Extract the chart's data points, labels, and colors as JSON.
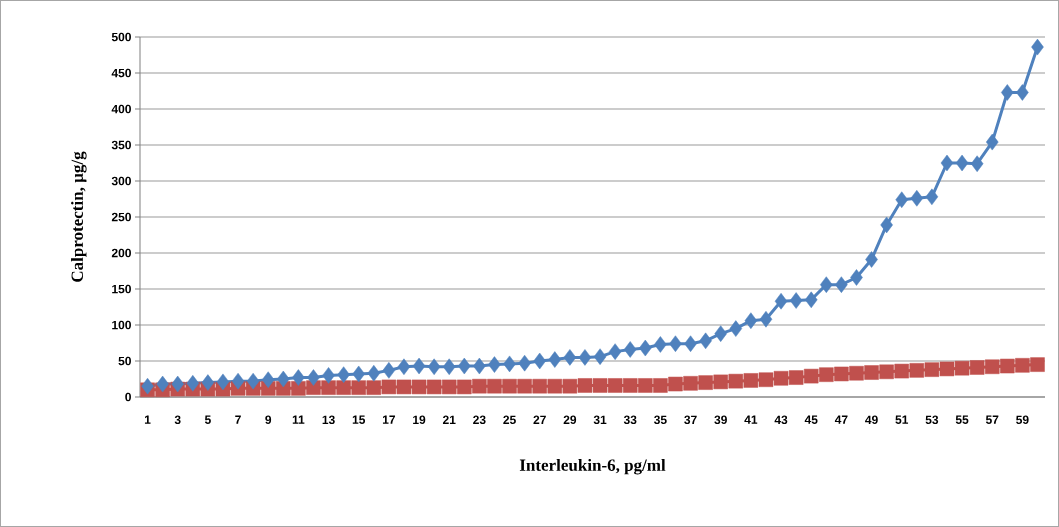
{
  "chart_data": {
    "type": "line",
    "xlabel": "Interleukin-6, pg/ml",
    "ylabel": "Calprotectin, µg/g",
    "categories": [
      "1",
      null,
      "3",
      null,
      "5",
      null,
      "7",
      null,
      "9",
      null,
      "11",
      null,
      "13",
      null,
      "15",
      null,
      "17",
      null,
      "19",
      null,
      "21",
      null,
      "23",
      null,
      "25",
      null,
      "27",
      null,
      "29",
      null,
      "31",
      null,
      "33",
      null,
      "35",
      null,
      "37",
      null,
      "39",
      null,
      "41",
      null,
      "43",
      null,
      "45",
      null,
      "47",
      null,
      "49",
      null,
      "51",
      null,
      "53",
      null,
      "55",
      null,
      "57",
      null,
      "59",
      null
    ],
    "series": [
      {
        "color": "#4f81bd",
        "marker": "diamond",
        "values": [
          15,
          18,
          18,
          19,
          20,
          21,
          22,
          22,
          24,
          25,
          27,
          27,
          30,
          31,
          32,
          33,
          37,
          42,
          43,
          42,
          42,
          43,
          43,
          45,
          46,
          47,
          50,
          52,
          55,
          55,
          56,
          63,
          66,
          68,
          73,
          74,
          74,
          78,
          88,
          95,
          106,
          108,
          133,
          134,
          135,
          156,
          156,
          166,
          191,
          239,
          274,
          276,
          278,
          325,
          325,
          324,
          354,
          423,
          423,
          486
        ]
      },
      {
        "color": "#c0504d",
        "marker": "square",
        "values": [
          10,
          10,
          11,
          11,
          11,
          11,
          12,
          12,
          12,
          12,
          12,
          13,
          13,
          13,
          13,
          13,
          14,
          14,
          14,
          14,
          14,
          14,
          15,
          15,
          15,
          15,
          15,
          15,
          15,
          16,
          16,
          16,
          16,
          16,
          16,
          18,
          19,
          20,
          21,
          22,
          23,
          24,
          26,
          27,
          29,
          31,
          32,
          33,
          34,
          35,
          36,
          37,
          38,
          39,
          40,
          41,
          42,
          43,
          44,
          45
        ]
      }
    ],
    "ylim": [
      0,
      500
    ],
    "yticks": [
      0,
      50,
      100,
      150,
      200,
      250,
      300,
      350,
      400,
      450,
      500
    ],
    "grid": "y"
  }
}
